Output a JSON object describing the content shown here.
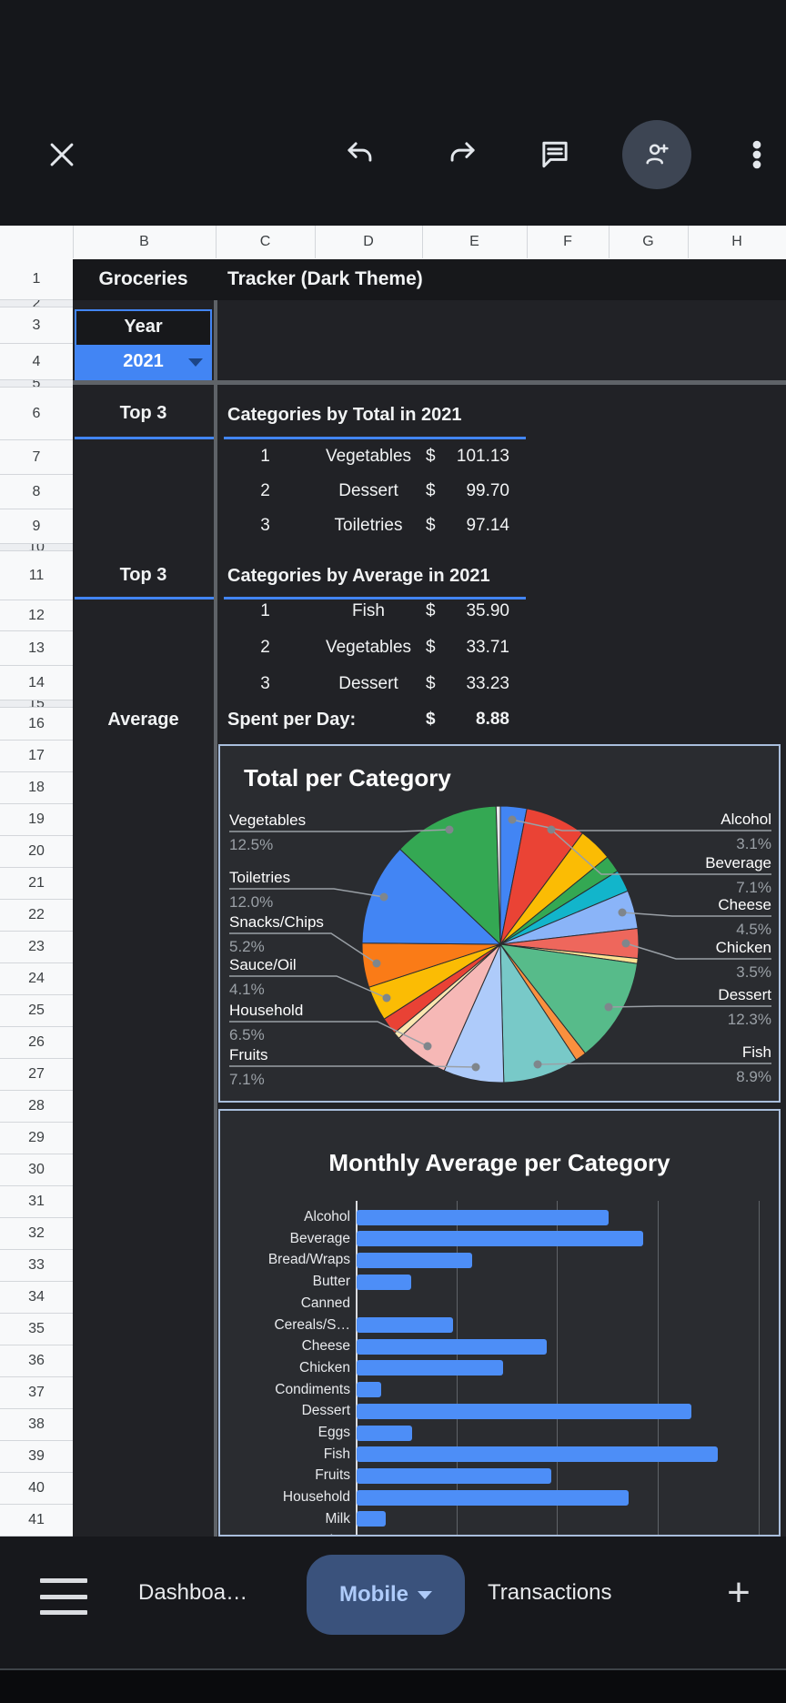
{
  "columns": [
    "B",
    "C",
    "D",
    "E",
    "F",
    "G",
    "H"
  ],
  "row_numbers": [
    "1",
    "2",
    "3",
    "4",
    "5",
    "6",
    "7",
    "8",
    "9",
    "10",
    "11",
    "12",
    "13",
    "14",
    "15",
    "16",
    "17",
    "18",
    "19",
    "20",
    "21",
    "22",
    "23",
    "24",
    "25",
    "26",
    "27",
    "28",
    "29",
    "30",
    "31",
    "32",
    "33",
    "34",
    "35",
    "36",
    "37",
    "38",
    "39",
    "40",
    "41"
  ],
  "hidden_rows": [
    2,
    5,
    10,
    15
  ],
  "title": {
    "b": "Groceries",
    "c": "Tracker (Dark Theme)"
  },
  "year": {
    "label": "Year",
    "value": "2021"
  },
  "sections": {
    "top_total": {
      "label": "Top 3",
      "title": "Categories by Total in 2021",
      "rows": [
        {
          "rank": "1",
          "category": "Vegetables",
          "currency": "$",
          "value": "101.13"
        },
        {
          "rank": "2",
          "category": "Dessert",
          "currency": "$",
          "value": "99.70"
        },
        {
          "rank": "3",
          "category": "Toiletries",
          "currency": "$",
          "value": "97.14"
        }
      ]
    },
    "top_avg": {
      "label": "Top 3",
      "title": "Categories by Average in 2021",
      "rows": [
        {
          "rank": "1",
          "category": "Fish",
          "currency": "$",
          "value": "35.90"
        },
        {
          "rank": "2",
          "category": "Vegetables",
          "currency": "$",
          "value": "33.71"
        },
        {
          "rank": "3",
          "category": "Dessert",
          "currency": "$",
          "value": "33.23"
        }
      ]
    },
    "daily": {
      "label": "Average",
      "text": "Spent per Day:",
      "currency": "$",
      "value": "8.88"
    }
  },
  "tabs": {
    "sheet_prev": "Dashboa…",
    "active": "Mobile",
    "sheet_next": "Transactions",
    "add": "+"
  },
  "accent_colors": {
    "selection_blue": "#4285f4",
    "active_tab_bg": "#3a527c",
    "active_tab_text": "#aecbfa"
  },
  "chart_data": [
    {
      "type": "pie",
      "title": "Total per Category",
      "legend_position": "outside-labels",
      "slices": [
        {
          "label": "Alcohol",
          "pct": 3.1,
          "color": "#4285f4"
        },
        {
          "label": "Beverage",
          "pct": 7.1,
          "color": "#ea4335"
        },
        {
          "label": "",
          "pct": 4.0,
          "color": "#fbbc04"
        },
        {
          "label": "",
          "pct": 2.0,
          "color": "#34a853"
        },
        {
          "label": "",
          "pct": 2.6,
          "color": "#12b5cb"
        },
        {
          "label": "Cheese",
          "pct": 4.5,
          "color": "#8ab4f8"
        },
        {
          "label": "Chicken",
          "pct": 3.5,
          "color": "#ee675c"
        },
        {
          "label": "",
          "pct": 0.6,
          "color": "#fde293"
        },
        {
          "label": "Dessert",
          "pct": 12.3,
          "color": "#57bb8a"
        },
        {
          "label": "",
          "pct": 1.3,
          "color": "#fa903e"
        },
        {
          "label": "Fish",
          "pct": 8.9,
          "color": "#78c9c8"
        },
        {
          "label": "Fruits",
          "pct": 7.1,
          "color": "#aecbfa"
        },
        {
          "label": "Household",
          "pct": 6.5,
          "color": "#f6b8b6"
        },
        {
          "label": "",
          "pct": 0.8,
          "color": "#fbe7b1"
        },
        {
          "label": "",
          "pct": 2.0,
          "color": "#e94235"
        },
        {
          "label": "Sauce/Oil",
          "pct": 4.1,
          "color": "#fbbc04"
        },
        {
          "label": "Snacks/Chips",
          "pct": 5.2,
          "color": "#fa7b17"
        },
        {
          "label": "Toiletries",
          "pct": 12.0,
          "color": "#4285f4"
        },
        {
          "label": "Vegetables",
          "pct": 12.5,
          "color": "#34a853"
        },
        {
          "label": "",
          "pct": 0.5,
          "color": "#e8eaed"
        }
      ]
    },
    {
      "type": "bar",
      "orientation": "horizontal",
      "title": "Monthly Average per Category",
      "categories": [
        "Alcohol",
        "Beverage",
        "Bread/Wraps",
        "Butter",
        "Canned",
        "Cereals/S…",
        "Cheese",
        "Chicken",
        "Condiments",
        "Dessert",
        "Eggs",
        "Fish",
        "Fruits",
        "Household",
        "Milk",
        "Other"
      ],
      "values": [
        25.0,
        28.5,
        11.5,
        5.4,
        0,
        9.6,
        18.9,
        14.5,
        2.4,
        33.2,
        5.5,
        35.9,
        19.3,
        27.0,
        2.9,
        null
      ],
      "xlim": [
        0,
        40
      ],
      "gridline_step": 10,
      "grid": "on",
      "bar_color": "#4d8ef7"
    }
  ]
}
